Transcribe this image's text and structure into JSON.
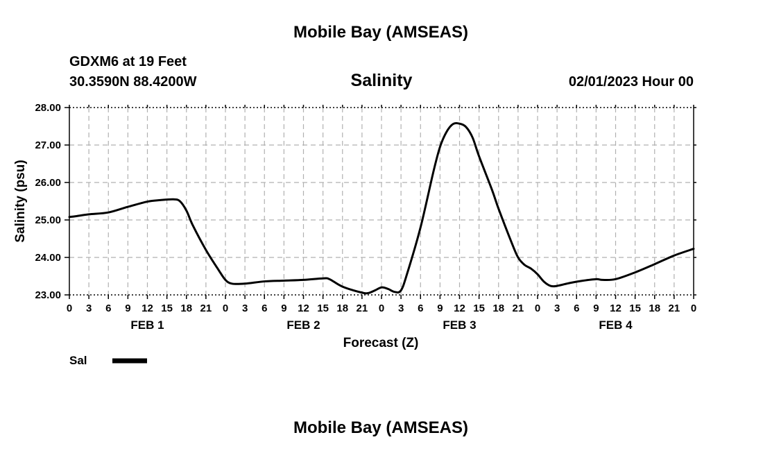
{
  "header": {
    "title_top": "Mobile Bay (AMSEAS)",
    "station": "GDXM6 at 19 Feet",
    "coords": "30.3590N  88.4200W",
    "timestamp": "02/01/2023 Hour 00",
    "title_bottom": "Mobile Bay (AMSEAS)"
  },
  "legend": {
    "series_label": "Sal"
  },
  "colors": {
    "line": "#000000",
    "grid": "#b0b0b0",
    "frame": "#000000",
    "background": "#ffffff"
  },
  "chart_data": {
    "type": "line",
    "title": "Salinity",
    "xlabel": "Forecast (Z)",
    "ylabel": "Salinity (psu)",
    "ylim": [
      23.0,
      28.0
    ],
    "xlim": [
      0,
      96
    ],
    "x_unit": "hours from 02/01/2023 00Z",
    "grid": true,
    "legend_position": "bottom-left",
    "y_ticks": [
      "23.00",
      "24.00",
      "25.00",
      "26.00",
      "27.00",
      "28.00"
    ],
    "x_ticks": [
      "0",
      "3",
      "6",
      "9",
      "12",
      "15",
      "18",
      "21",
      "0",
      "3",
      "6",
      "9",
      "12",
      "15",
      "18",
      "21",
      "0",
      "3",
      "6",
      "9",
      "12",
      "15",
      "18",
      "21",
      "0",
      "3",
      "6",
      "9",
      "12",
      "15",
      "18",
      "21",
      "0"
    ],
    "day_labels": [
      "FEB 1",
      "FEB 2",
      "FEB 3",
      "FEB 4"
    ],
    "series": [
      {
        "name": "Sal",
        "x": [
          0,
          1,
          3,
          6,
          9,
          12,
          14,
          16,
          17,
          18,
          19,
          21,
          23,
          24,
          25,
          27,
          30,
          33,
          36,
          39,
          40,
          42,
          45,
          46,
          47,
          48,
          49,
          50,
          51,
          52,
          54,
          56,
          57,
          58,
          59,
          60,
          61,
          62,
          63,
          65,
          66,
          68,
          69,
          70,
          71,
          72,
          73,
          74,
          75,
          77,
          79,
          81,
          82,
          84,
          87,
          90,
          93,
          96
        ],
        "y": [
          25.08,
          25.1,
          25.15,
          25.2,
          25.35,
          25.49,
          25.53,
          25.55,
          25.5,
          25.25,
          24.85,
          24.2,
          23.65,
          23.4,
          23.3,
          23.3,
          23.36,
          23.38,
          23.4,
          23.44,
          23.42,
          23.22,
          23.06,
          23.05,
          23.12,
          23.2,
          23.16,
          23.08,
          23.12,
          23.6,
          24.8,
          26.3,
          26.95,
          27.35,
          27.56,
          27.57,
          27.48,
          27.2,
          26.7,
          25.8,
          25.3,
          24.4,
          24.0,
          23.8,
          23.7,
          23.55,
          23.35,
          23.24,
          23.24,
          23.32,
          23.38,
          23.42,
          23.4,
          23.42,
          23.6,
          23.82,
          24.05,
          24.23
        ]
      }
    ]
  }
}
